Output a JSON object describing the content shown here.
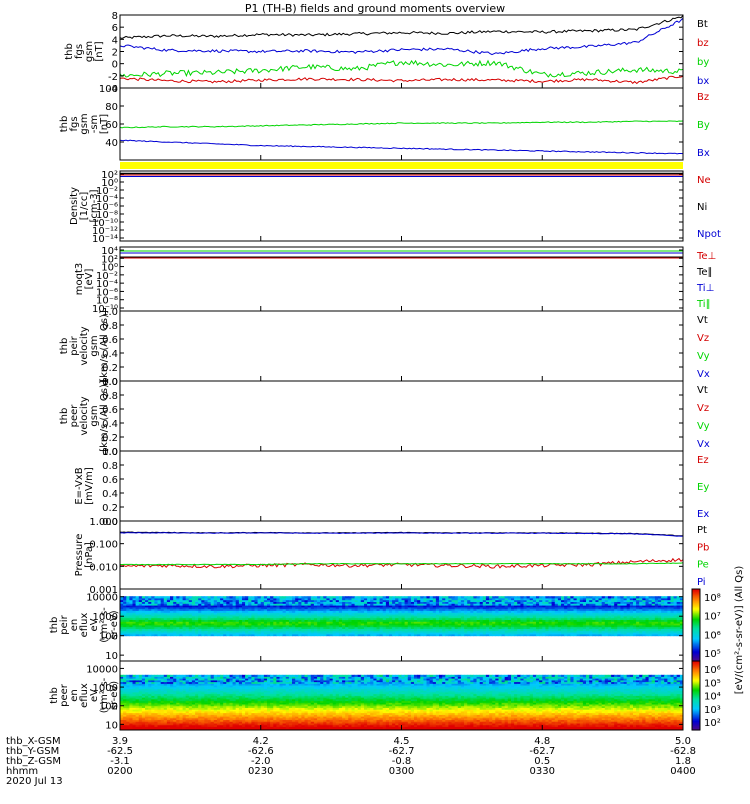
{
  "title": "P1 (TH-B) fields and ground moments overview",
  "date": "2020 Jul 13",
  "colors": {
    "black": "#000000",
    "red": "#d40000",
    "green": "#00d400",
    "blue": "#0000d4",
    "yellow": "#ffff00"
  },
  "chart_data": [
    {
      "type": "line",
      "panel": "fgs",
      "ylabel": [
        "thb",
        "fgs",
        "gsm",
        "[nT]"
      ],
      "yticks": [
        "8",
        "6",
        "4",
        "2",
        "0",
        "-2",
        "-4"
      ],
      "ylim": [
        -4,
        8
      ],
      "series": [
        {
          "name": "Bt",
          "color": "black",
          "values": [
            4.2,
            4.6,
            4.5,
            4.8,
            4.7,
            4.9,
            5.1,
            5.0,
            5.3,
            5.2,
            5.4,
            5.6,
            7.8
          ]
        },
        {
          "name": "bz",
          "color": "red",
          "values": [
            -2.4,
            -2.8,
            -3.0,
            -2.7,
            -2.5,
            -2.6,
            -2.8,
            -2.6,
            -2.7,
            -2.9,
            -2.6,
            -3.1,
            -2.0
          ]
        },
        {
          "name": "by",
          "color": "green",
          "values": [
            -2.0,
            -1.6,
            -1.5,
            -1.1,
            -0.5,
            -0.9,
            0.3,
            -0.2,
            0.2,
            -1.8,
            -1.5,
            -1.0,
            -1.3
          ]
        },
        {
          "name": "bx",
          "color": "blue",
          "values": [
            3.0,
            2.2,
            2.1,
            2.0,
            2.1,
            1.9,
            2.3,
            2.4,
            1.6,
            2.5,
            2.8,
            3.5,
            7.3
          ]
        }
      ]
    },
    {
      "type": "line",
      "panel": "fgs-sm",
      "ylabel": [
        "thb",
        "fgs",
        "gsm",
        "-sm",
        "[nT]"
      ],
      "yticks": [
        "100",
        "80",
        "60",
        "40"
      ],
      "ylim": [
        20,
        100
      ],
      "series": [
        {
          "name": "Bz",
          "color": "red",
          "values": []
        },
        {
          "name": "By",
          "color": "green",
          "values": [
            56,
            57,
            57,
            58,
            59,
            60,
            61,
            61,
            61,
            62,
            62,
            63,
            63
          ]
        },
        {
          "name": "Bx",
          "color": "blue",
          "values": [
            42,
            40,
            38,
            36,
            35,
            34,
            33,
            32,
            31,
            30,
            29,
            28,
            27
          ]
        }
      ]
    },
    {
      "type": "line",
      "panel": "density",
      "ylabel": [
        "Density",
        "[1/cc]",
        "[cm-3]"
      ],
      "yticks": [
        "10²",
        "10⁰",
        "10⁻²",
        "10⁻⁴",
        "10⁻⁶",
        "10⁻⁸",
        "10⁻¹⁰",
        "10⁻¹²",
        "10⁻¹⁴"
      ],
      "series": [
        {
          "name": "Ne",
          "color": "red"
        },
        {
          "name": "Ni",
          "color": "black"
        },
        {
          "name": "Npot",
          "color": "blue"
        }
      ]
    },
    {
      "type": "line",
      "panel": "temperature",
      "ylabel": [
        "moqt3",
        "[eV]"
      ],
      "yticks": [
        "10⁴",
        "10²",
        "10⁰",
        "10⁻²",
        "10⁻⁴",
        "10⁻⁶",
        "10⁻⁸",
        "10⁻¹⁰"
      ],
      "series": [
        {
          "name": "Te⊥",
          "color": "red"
        },
        {
          "name": "Te∥",
          "color": "black"
        },
        {
          "name": "Ti⊥",
          "color": "blue"
        },
        {
          "name": "Ti∥",
          "color": "green"
        }
      ]
    },
    {
      "type": "line",
      "panel": "peir-velocity",
      "ylabel": [
        "thb",
        "peir",
        "velocity",
        "gsm",
        "[km/s (All Qs)]"
      ],
      "yticks": [
        "1.0",
        "0.8",
        "0.6",
        "0.4",
        "0.2",
        "0.0"
      ],
      "ylim": [
        0,
        1
      ],
      "series": [
        {
          "name": "Vt",
          "color": "black"
        },
        {
          "name": "Vz",
          "color": "red"
        },
        {
          "name": "Vy",
          "color": "green"
        },
        {
          "name": "Vx",
          "color": "blue"
        }
      ]
    },
    {
      "type": "line",
      "panel": "peer-velocity",
      "ylabel": [
        "thb",
        "peer",
        "velocity",
        "gsm",
        "[km/s (All Qs)]"
      ],
      "yticks": [
        "1.0",
        "0.8",
        "0.6",
        "0.4",
        "0.2",
        "0.0"
      ],
      "ylim": [
        0,
        1
      ],
      "series": [
        {
          "name": "Vt",
          "color": "black"
        },
        {
          "name": "Vz",
          "color": "red"
        },
        {
          "name": "Vy",
          "color": "green"
        },
        {
          "name": "Vx",
          "color": "blue"
        }
      ]
    },
    {
      "type": "line",
      "panel": "efield",
      "ylabel": [
        "E=-VxB",
        "[mV/m]"
      ],
      "yticks": [
        "1.0",
        "0.8",
        "0.6",
        "0.4",
        "0.2",
        "0.0"
      ],
      "ylim": [
        0,
        1
      ],
      "series": [
        {
          "name": "Ez",
          "color": "red"
        },
        {
          "name": "Ey",
          "color": "green"
        },
        {
          "name": "Ex",
          "color": "blue"
        }
      ]
    },
    {
      "type": "line",
      "panel": "pressure",
      "ylabel": [
        "Pressure",
        "[nPa]"
      ],
      "yticks": [
        "1.000",
        "0.100",
        "0.010",
        "0.001"
      ],
      "ylim": [
        0.001,
        1
      ],
      "scale": "log",
      "series": [
        {
          "name": "Pt",
          "color": "black",
          "values": [
            0.32,
            0.31,
            0.3,
            0.31,
            0.3,
            0.3,
            0.31,
            0.3,
            0.3,
            0.3,
            0.29,
            0.28,
            0.22
          ]
        },
        {
          "name": "Pb",
          "color": "red",
          "values": [
            0.01,
            0.011,
            0.01,
            0.011,
            0.012,
            0.011,
            0.012,
            0.011,
            0.01,
            0.011,
            0.012,
            0.016,
            0.02
          ]
        },
        {
          "name": "Pe",
          "color": "green",
          "values": [
            0.012,
            0.012,
            0.012,
            0.012,
            0.013,
            0.013,
            0.013,
            0.013,
            0.013,
            0.013,
            0.013,
            0.013,
            0.014
          ]
        },
        {
          "name": "Pi",
          "color": "blue",
          "values": [
            0.3,
            0.3,
            0.29,
            0.3,
            0.29,
            0.29,
            0.3,
            0.29,
            0.29,
            0.29,
            0.28,
            0.27,
            0.21
          ]
        }
      ]
    },
    {
      "type": "heatmap",
      "panel": "peir-eflux",
      "ylabel": [
        "thb",
        "peir",
        "en",
        "eflux",
        "eV",
        "(cm²-s-",
        "sr-eV)"
      ],
      "yticks": [
        "10000",
        "1000",
        "100",
        "10"
      ],
      "ylim": [
        5,
        25000
      ],
      "scale": "log",
      "colorbar": {
        "ticks": [
          "10⁸",
          "10⁷",
          "10⁶",
          "10⁵"
        ],
        "label": "[eV/(cm²-s-sr-eV)] (All Qs)"
      }
    },
    {
      "type": "heatmap",
      "panel": "peer-eflux",
      "ylabel": [
        "thb",
        "peer",
        "en",
        "eflux",
        "eV",
        "(cm²-s-",
        "sr-eV)"
      ],
      "yticks": [
        "10000",
        "1000",
        "100",
        "10"
      ],
      "ylim": [
        5,
        25000
      ],
      "scale": "log",
      "colorbar": {
        "ticks": [
          "10⁶",
          "10⁵",
          "10⁴",
          "10³",
          "10²"
        ],
        "label": "[eV/(cm²-s-sr-eV)] (All Qs)"
      }
    }
  ],
  "xaxis": {
    "rows": [
      {
        "label": "thb_X-GSM",
        "values": [
          "3.9",
          "4.2",
          "4.5",
          "4.8",
          "5.0"
        ]
      },
      {
        "label": "thb_Y-GSM",
        "values": [
          "-62.5",
          "-62.6",
          "-62.7",
          "-62.7",
          "-62.8"
        ]
      },
      {
        "label": "thb_Z-GSM",
        "values": [
          "-3.1",
          "-2.0",
          "-0.8",
          "0.5",
          "1.8"
        ]
      },
      {
        "label": "hhmm",
        "values": [
          "0200",
          "0230",
          "0300",
          "0330",
          "0400"
        ]
      }
    ]
  },
  "colorbar_label": "[eV/(cm²-s-sr-eV)] (All Qs)"
}
